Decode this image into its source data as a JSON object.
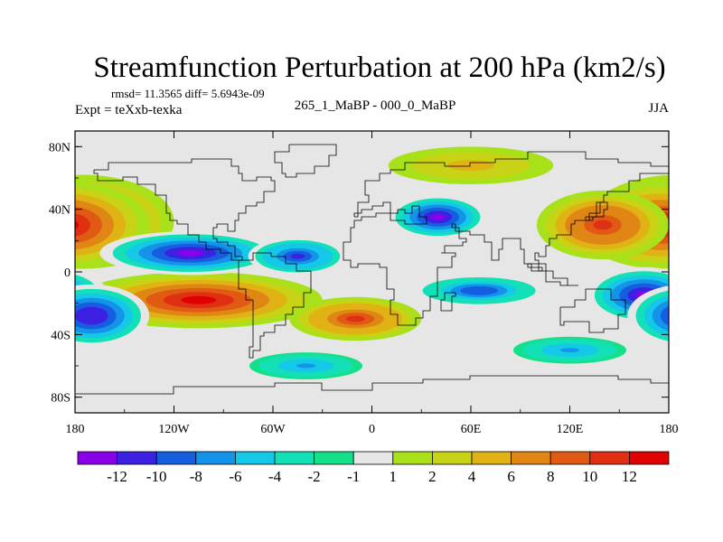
{
  "title": "Streamfunction Perturbation at 200 hPa (km2/s)",
  "stats_line": "rmsd= 11.3565 diff= 5.6943e-09",
  "experiment_line": "Expt = teXxb-texka",
  "comparison_line": "265_1_MaBP - 000_0_MaBP",
  "season": "JJA",
  "map": {
    "projection": "cylindrical-equidistant",
    "lon_range": [
      -180,
      180
    ],
    "lat_range": [
      -90,
      90
    ],
    "lat_ticks": [
      {
        "value": 80,
        "label": "80N"
      },
      {
        "value": 40,
        "label": "40N"
      },
      {
        "value": 0,
        "label": "0"
      },
      {
        "value": -40,
        "label": "40S"
      },
      {
        "value": -80,
        "label": "80S"
      }
    ],
    "lon_ticks": [
      {
        "value": -180,
        "label": "180"
      },
      {
        "value": -120,
        "label": "120W"
      },
      {
        "value": -60,
        "label": "60W"
      },
      {
        "value": 0,
        "label": "0"
      },
      {
        "value": 60,
        "label": "60E"
      },
      {
        "value": 120,
        "label": "120E"
      },
      {
        "value": 180,
        "label": "180"
      }
    ],
    "fields": [
      {
        "name": "north-pacific-high",
        "lon": -175,
        "lat": 32,
        "r_lon": 55,
        "r_lat": 30,
        "value": 12
      },
      {
        "name": "north-pacific-high-west",
        "lon": 175,
        "lat": 30,
        "r_lon": 50,
        "r_lat": 28,
        "value": 12
      },
      {
        "name": "east-asia-high",
        "lon": 140,
        "lat": 30,
        "r_lon": 40,
        "r_lat": 22,
        "value": 11
      },
      {
        "name": "south-pacific-high",
        "lon": -105,
        "lat": -18,
        "r_lon": 75,
        "r_lat": 18,
        "value": 13
      },
      {
        "name": "south-atlantic-high",
        "lon": -10,
        "lat": -30,
        "r_lon": 40,
        "r_lat": 14,
        "value": 10
      },
      {
        "name": "north-america-low",
        "lon": -110,
        "lat": 12,
        "r_lon": 55,
        "r_lat": 14,
        "value": -13
      },
      {
        "name": "north-atlantic-low",
        "lon": -45,
        "lat": 10,
        "r_lon": 30,
        "r_lat": 12,
        "value": -11
      },
      {
        "name": "north-africa-low",
        "lon": 40,
        "lat": 35,
        "r_lon": 30,
        "r_lat": 14,
        "value": -13
      },
      {
        "name": "south-indian-low",
        "lon": 65,
        "lat": -12,
        "r_lon": 40,
        "r_lat": 10,
        "value": -10
      },
      {
        "name": "south-pacific-low-west",
        "lon": 165,
        "lat": -15,
        "r_lon": 35,
        "r_lat": 18,
        "value": -13
      },
      {
        "name": "south-pacific-low-east",
        "lon": -170,
        "lat": -28,
        "r_lon": 35,
        "r_lat": 20,
        "value": -12
      },
      {
        "name": "southern-ocean-low",
        "lon": -40,
        "lat": -60,
        "r_lon": 40,
        "r_lat": 10,
        "value": -7
      },
      {
        "name": "southern-ocean-low-east",
        "lon": 120,
        "lat": -50,
        "r_lon": 40,
        "r_lat": 10,
        "value": -7
      },
      {
        "name": "arctic-high",
        "lon": 60,
        "lat": 68,
        "r_lon": 50,
        "r_lat": 12,
        "value": 5
      }
    ]
  },
  "colorbar": {
    "colors": [
      "#8a00e8",
      "#3d21e2",
      "#155ee0",
      "#1593e8",
      "#14c9e8",
      "#14e0b7",
      "#14e08a",
      "#e6e6e6",
      "#a8e01a",
      "#c7d314",
      "#e0b214",
      "#e08614",
      "#e05a14",
      "#e03014",
      "#e00000"
    ],
    "labels": [
      "-12",
      "-10",
      "-8",
      "-6",
      "-4",
      "-2",
      "-1",
      "1",
      "2",
      "4",
      "6",
      "8",
      "10",
      "12"
    ]
  }
}
